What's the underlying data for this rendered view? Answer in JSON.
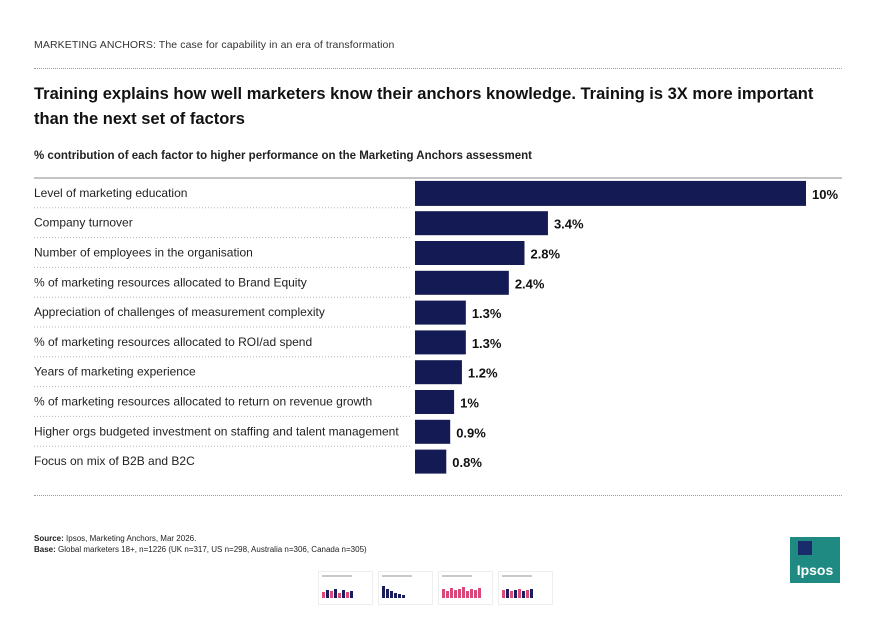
{
  "header": {
    "label": "MARKETING ANCHORS: The case for capability in an era of transformation"
  },
  "title": "Training explains how well marketers know their anchors knowledge. Training is 3X more important than the next set of factors",
  "subtitle": "% contribution of each factor to higher performance on the Marketing Anchors assessment",
  "chart_data": {
    "type": "bar",
    "orientation": "horizontal",
    "title": "% contribution of each factor to higher performance on the Marketing Anchors assessment",
    "categories": [
      "Level of marketing education",
      "Company turnover",
      "Number of employees in the organisation",
      "% of marketing resources allocated to Brand Equity",
      "Appreciation of challenges of measurement complexity",
      "% of marketing resources allocated to ROI/ad spend",
      "Years of marketing experience",
      "% of marketing resources allocated to return on revenue growth",
      "Higher orgs budgeted investment on staffing and talent management",
      "Focus on mix of B2B and B2C"
    ],
    "values": [
      10,
      3.4,
      2.8,
      2.4,
      1.3,
      1.3,
      1.2,
      1,
      0.9,
      0.8
    ],
    "value_labels": [
      "10%",
      "3.4%",
      "2.8%",
      "2.4%",
      "1.3%",
      "1.3%",
      "1.2%",
      "1%",
      "0.9%",
      "0.8%"
    ],
    "xlim": [
      0,
      10
    ],
    "bar_color": "#141a54",
    "xlabel": "",
    "ylabel": ""
  },
  "footer": {
    "source_label": "Source:",
    "source_text": "Ipsos, Marketing Anchors, Mar 2026.",
    "base_label": "Base:",
    "base_text": "Global marketers 18+, n=1226 (UK n=317, US n=298, Australia n=306, Canada n=305)"
  },
  "logo": {
    "text": "Ipsos",
    "color": "#1f8a82"
  }
}
